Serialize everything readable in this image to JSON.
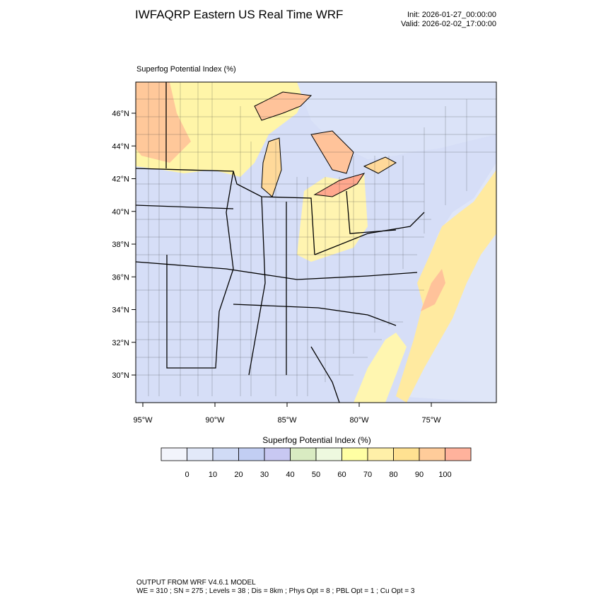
{
  "title": "IWFAQRP Eastern US Real Time WRF",
  "init": "Init: 2026-01-27_00:00:00",
  "valid": "Valid: 2026-02-02_17:00:00",
  "map": {
    "field_label": "Superfog Potential Index   (%)",
    "lat_labels": [
      "46°N",
      "44°N",
      "42°N",
      "40°N",
      "38°N",
      "36°N",
      "34°N",
      "32°N",
      "30°N"
    ],
    "lon_labels": [
      "95°W",
      "90°W",
      "85°W",
      "80°W",
      "75°W"
    ]
  },
  "colorbar": {
    "title": "Superfog Potential Index  (%)",
    "labels": [
      0,
      10,
      20,
      30,
      40,
      50,
      60,
      70,
      80,
      90,
      100
    ],
    "colors": [
      "#f2f4fb",
      "#e2e9f9",
      "#d0dbf6",
      "#c2cef3",
      "#c8c8f2",
      "#d9ebc2",
      "#eef9df",
      "#ffffa3",
      "#fff0a8",
      "#ffe191",
      "#ffcc9a",
      "#ffb29c"
    ]
  },
  "footer": {
    "line1": "OUTPUT FROM WRF V4.6.1 MODEL",
    "line2": "WE = 310 ; SN = 275 ; Levels = 38 ; Dis = 8km ; Phys Opt = 8 ; PBL Opt = 1 ; Cu Opt = 3"
  }
}
